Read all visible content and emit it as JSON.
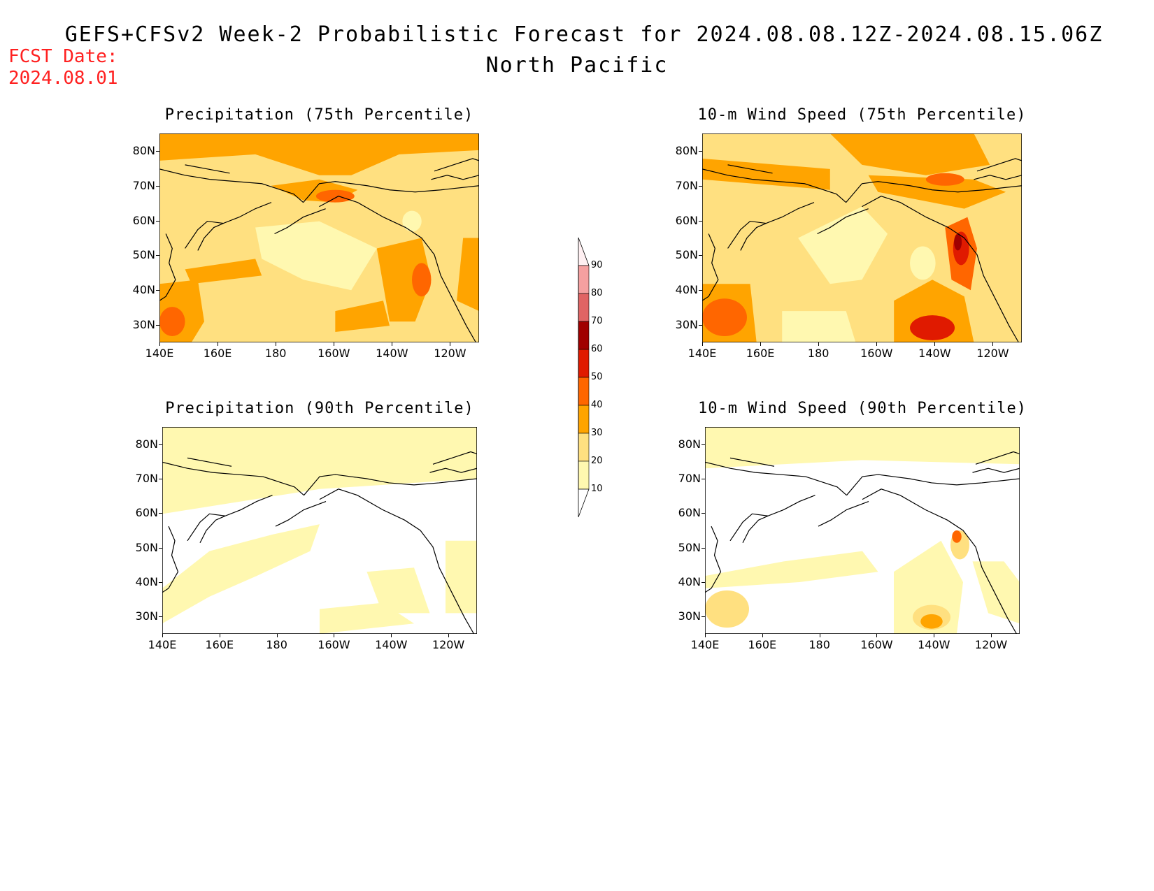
{
  "header": {
    "title": "GEFS+CFSv2 Week-2 Probabilistic Forecast for 2024.08.08.12Z-2024.08.15.06Z",
    "region": "North Pacific",
    "fcst_label": "FCST Date:",
    "fcst_date": "2024.08.01"
  },
  "colors": {
    "c10": "#fff8b0",
    "c20": "#ffe080",
    "c30": "#ffa400",
    "c40": "#ff6600",
    "c50": "#e01a00",
    "c60": "#a00000",
    "c70": "#e06464",
    "c80": "#f5a0a0",
    "c90": "#ffe4e8"
  },
  "axes": {
    "y_ticks": [
      "80N",
      "70N",
      "60N",
      "50N",
      "40N",
      "30N"
    ],
    "x_ticks": [
      "140E",
      "160E",
      "180",
      "160W",
      "140W",
      "120W"
    ]
  },
  "panels": [
    {
      "id": "precip75",
      "title": "Precipitation (75th Percentile)"
    },
    {
      "id": "wind75",
      "title": "10-m Wind Speed (75th Percentile)"
    },
    {
      "id": "precip90",
      "title": "Precipitation (90th Percentile)"
    },
    {
      "id": "wind90",
      "title": "10-m Wind Speed (90th Percentile)"
    }
  ],
  "colorbar": {
    "labels": [
      "90",
      "80",
      "70",
      "60",
      "50",
      "40",
      "30",
      "20",
      "10"
    ]
  }
}
